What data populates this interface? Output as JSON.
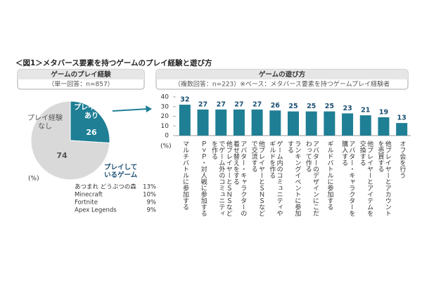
{
  "title": "＜図1＞メタバース要素を持つゲームのプレイ経験と遊び方",
  "chart_data": [
    {
      "type": "pie",
      "title": "ゲームのプレイ経験",
      "subtitle": "（単一回答：n=857）",
      "categories": [
        "プレイ経験あり",
        "プレイ経験なし"
      ],
      "values": [
        26,
        74
      ],
      "colors": [
        "#1f7f95",
        "#d9d9d9"
      ],
      "unit": "(%)",
      "annotation": {
        "title": "プレイしているゲーム",
        "items": [
          {
            "name": "あつまれ どうぶつの森",
            "value": "13%"
          },
          {
            "name": "Minecraft",
            "value": "10%"
          },
          {
            "name": "Fortnite",
            "value": "9%"
          },
          {
            "name": "Apex Legends",
            "value": "9%"
          }
        ]
      }
    },
    {
      "type": "bar",
      "title": "ゲームの遊び方",
      "subtitle": "（複数回答：n=223）※ベース：メタバース要素を持つゲームプレイ経験者",
      "categories": [
        "マルチバトルに参加する",
        "ＰｖＰ・対人戦に参加する",
        "他プレイヤーとＳＮＳなどでゲーム外のコミュニティを作る",
        "アバター・キャラクターの着せ替えをする",
        "他プレイヤーとＳＮＳなどで交流する",
        "ゲーム内のコミュニティやギルドを作る",
        "ランキングイベントに参加する",
        "アバターのデザインにこだわって作る",
        "ギルドバトルに参加する",
        "アバター・キャラクターを購入する",
        "他プレイヤーとアイテムを交換する",
        "他プレイヤーとアカウントを売買する",
        "オフ会を行う"
      ],
      "values": [
        32,
        27,
        27,
        27,
        27,
        26,
        25,
        25,
        25,
        23,
        21,
        19,
        13
      ],
      "color": "#1f7f95",
      "ylabel": "(%)",
      "ylim": [
        0,
        40
      ],
      "yticks": [
        0,
        10,
        20,
        30,
        40
      ]
    }
  ]
}
